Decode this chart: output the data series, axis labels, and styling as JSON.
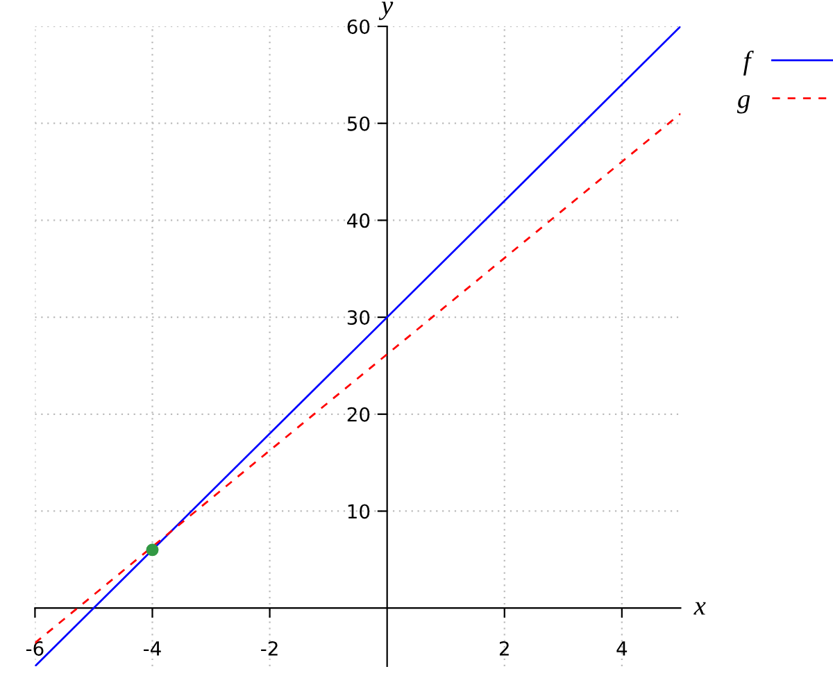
{
  "chart_data": {
    "type": "line",
    "xlabel": "x",
    "ylabel": "y",
    "xlim": [
      -6,
      5
    ],
    "ylim": [
      -6,
      60
    ],
    "xticks": [
      -6,
      -4,
      -2,
      2,
      4
    ],
    "yticks": [
      10,
      20,
      30,
      40,
      50,
      60
    ],
    "grid": true,
    "legend": "top right",
    "series": [
      {
        "name": "f",
        "color": "#0000ff",
        "x": [
          -6,
          5
        ],
        "values": [
          -6,
          60
        ],
        "line_style": "solid",
        "marker": "none"
      },
      {
        "name": "g",
        "color": "#ff0000",
        "x": [
          -6,
          5
        ],
        "values": [
          -3.6,
          51
        ],
        "line_style": "dashed",
        "marker": "none"
      },
      {
        "type": "scatter",
        "color": "#339944",
        "x": [
          -4
        ],
        "values": [
          6
        ],
        "marker": "circle"
      }
    ]
  }
}
